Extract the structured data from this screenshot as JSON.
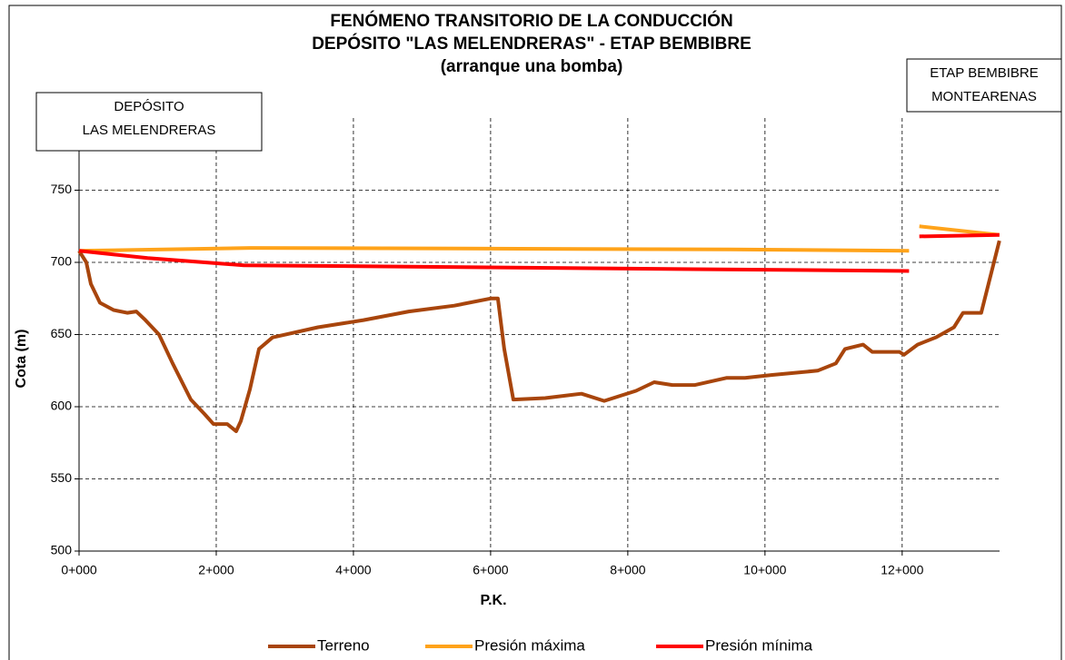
{
  "chart_data": {
    "type": "line",
    "title": [
      "FENÓMENO TRANSITORIO DE LA CONDUCCIÓN",
      "DEPÓSITO \"LAS MELENDRERAS\" - ETAP BEMBIBRE",
      "(arranque una bomba)"
    ],
    "xlabel": "P.K.",
    "ylabel": "Cota (m)",
    "annotations": [
      {
        "lines": [
          "DEPÓSITO",
          "LAS MELENDRERAS"
        ]
      },
      {
        "lines": [
          "ETAP BEMBIBRE",
          "MONTEARENAS"
        ]
      }
    ],
    "xlim": [
      0,
      13420
    ],
    "ylim": [
      500,
      800
    ],
    "xticks": [
      {
        "value": 0,
        "label": "0+000"
      },
      {
        "value": 2000,
        "label": "2+000"
      },
      {
        "value": 4000,
        "label": "4+000"
      },
      {
        "value": 6000,
        "label": "6+000"
      },
      {
        "value": 8000,
        "label": "8+000"
      },
      {
        "value": 10000,
        "label": "10+000"
      },
      {
        "value": 12000,
        "label": "12+000"
      }
    ],
    "yticks": [
      500,
      550,
      600,
      650,
      700,
      750
    ],
    "grid": true,
    "legend": "bottom",
    "series": [
      {
        "name": "Terreno",
        "color": "#a8450c",
        "x": [
          0,
          106,
          172,
          305,
          503,
          702,
          834,
          967,
          1166,
          1364,
          1629,
          1828,
          1960,
          2159,
          2291,
          2358,
          2490,
          2623,
          2821,
          3483,
          4146,
          4808,
          5470,
          6000,
          6106,
          6199,
          6331,
          6795,
          7325,
          7656,
          8119,
          8384,
          8649,
          8980,
          9444,
          9709,
          10106,
          10768,
          11033,
          11166,
          11430,
          11563,
          11960,
          12026,
          12225,
          12490,
          12755,
          12887,
          13152,
          13285,
          13417
        ],
        "values": [
          708,
          700,
          685,
          672,
          667,
          665,
          666,
          660,
          650,
          630,
          605,
          595,
          588,
          588,
          583,
          590,
          612,
          640,
          648,
          655,
          660,
          666,
          670,
          675,
          675,
          640,
          605,
          606,
          609,
          604,
          611,
          617,
          615,
          615,
          620,
          620,
          622,
          625,
          630,
          640,
          643,
          638,
          638,
          636,
          643,
          648,
          655,
          665,
          665,
          690,
          715
        ]
      },
      {
        "name": "Presión máxima",
        "color": "#ffa31a",
        "x": [
          0,
          2500,
          9500,
          12100,
          null,
          12250,
          13417
        ],
        "values": [
          708,
          710,
          709,
          708,
          null,
          725,
          719
        ]
      },
      {
        "name": "Presión mínima",
        "color": "#ff0000",
        "x": [
          0,
          1000,
          2400,
          12100,
          null,
          12250,
          13417
        ],
        "values": [
          708,
          703,
          698,
          694,
          null,
          718,
          719
        ]
      }
    ]
  }
}
